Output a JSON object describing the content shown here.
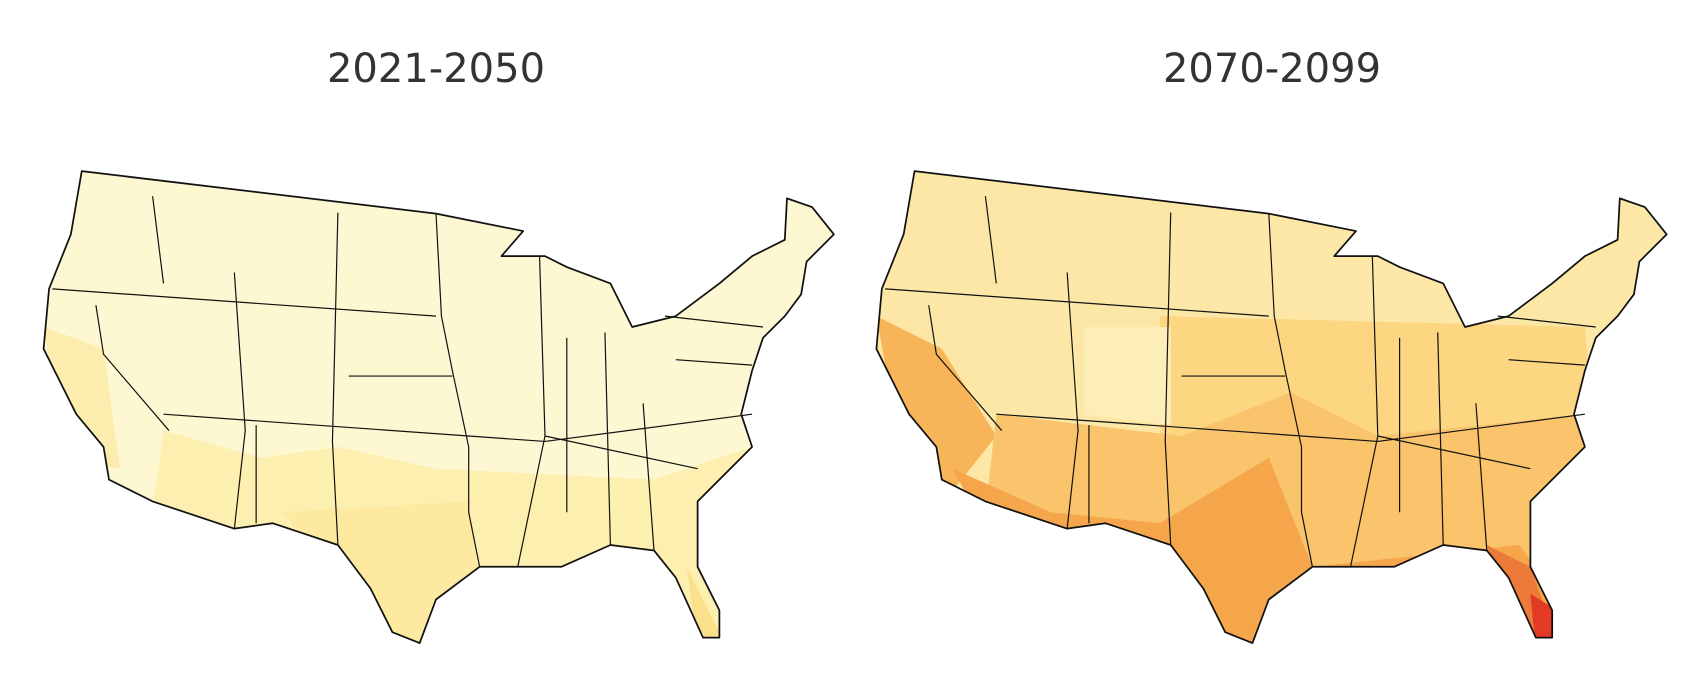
{
  "maps": [
    {
      "title": "2021-2050"
    },
    {
      "title": "2070-2099"
    }
  ]
}
